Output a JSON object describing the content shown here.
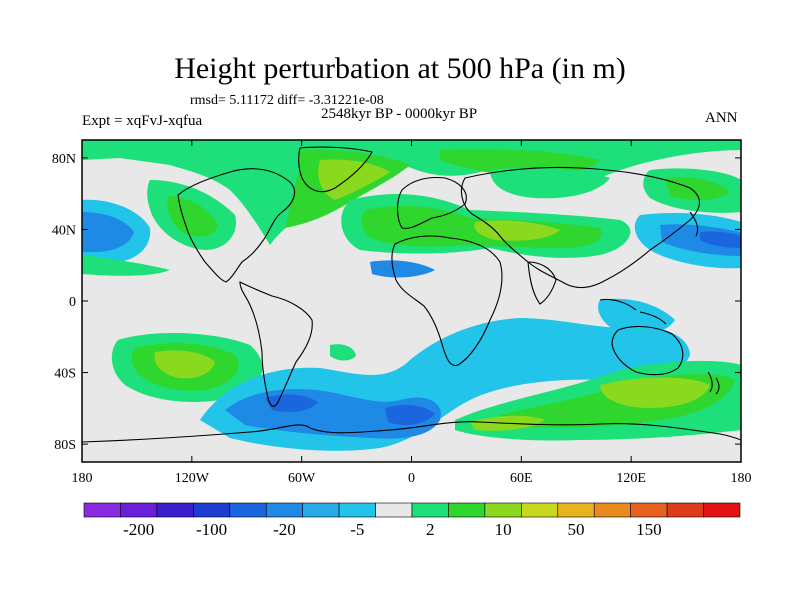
{
  "title": "Height perturbation at 500 hPa (in m)",
  "stats_line": "rmsd= 5.11172 diff= -3.31221e-08",
  "period": "2548kyr BP - 0000kyr BP",
  "experiment_label": "Expt = xqFvJ-xqfua",
  "season": "ANN",
  "lat_ticks": [
    "80N",
    "40N",
    "0",
    "40S",
    "80S"
  ],
  "lon_ticks": [
    "180",
    "120W",
    "60W",
    "0",
    "60E",
    "120E",
    "180"
  ],
  "colorbar": {
    "colors": [
      "#8a2be2",
      "#6a1fd8",
      "#3a1fcc",
      "#1e3ccf",
      "#1a66df",
      "#1e8ae6",
      "#2aaae8",
      "#22c4ea",
      "#e8e8e8",
      "#1ee07a",
      "#2ed62e",
      "#8ad91e",
      "#c8d81e",
      "#e8b41e",
      "#e88a1e",
      "#e6601e",
      "#e03a1e",
      "#e01414"
    ],
    "labels": [
      "-200",
      "-100",
      "-20",
      "-5",
      "2",
      "10",
      "50",
      "150"
    ]
  },
  "palette": {
    "background": "#e8e8e8",
    "neg_light": "#22c4ea",
    "neg_mid": "#1e8ae6",
    "neg_dark": "#1a66df",
    "pos_light": "#1ee07a",
    "pos_mid": "#2ed62e",
    "pos_strong": "#8ad91e",
    "pos_peak": "#c8d81e"
  }
}
